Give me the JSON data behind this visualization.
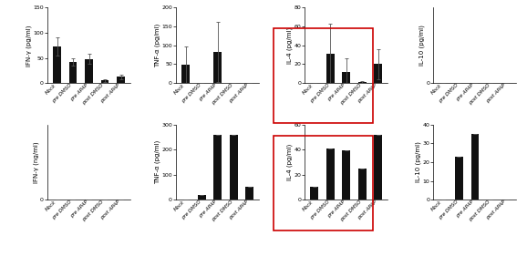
{
  "categories": [
    "Mock",
    "pre DMSO",
    "pre APAP",
    "post DMSO",
    "post APAP"
  ],
  "row1": {
    "IFN_gamma": {
      "ylabel": "IFN-γ (pg/ml)",
      "ylim": [
        0,
        150
      ],
      "yticks": [
        0,
        50,
        100,
        150
      ],
      "values": [
        73,
        42,
        48,
        5,
        12
      ],
      "errors": [
        18,
        8,
        10,
        3,
        5
      ],
      "boxed": false
    },
    "TNF_alpha": {
      "ylabel": "TNF-α (pg/ml)",
      "ylim": [
        0,
        200
      ],
      "yticks": [
        0,
        50,
        100,
        150,
        200
      ],
      "values": [
        48,
        0,
        82,
        0,
        0
      ],
      "errors": [
        50,
        0,
        80,
        0,
        0
      ],
      "boxed": false
    },
    "IL_4": {
      "ylabel": "IL-4 (pg/ml)",
      "ylim": [
        0,
        80
      ],
      "yticks": [
        0,
        20,
        40,
        60,
        80
      ],
      "values": [
        0,
        31,
        12,
        1,
        20
      ],
      "errors": [
        0,
        32,
        14,
        1,
        16
      ],
      "boxed": true
    },
    "IL_10": {
      "ylabel": "IL-10 (pg/ml)",
      "ylim": [
        0,
        4
      ],
      "yticks": [
        0
      ],
      "values": [
        0,
        0,
        0,
        0,
        0
      ],
      "errors": [
        0,
        0,
        0,
        0,
        0
      ],
      "boxed": false
    }
  },
  "row2": {
    "IFN_gamma": {
      "ylabel": "IFN-γ (ng/ml)",
      "ylim": [
        0,
        4
      ],
      "yticks": [
        0
      ],
      "values": [
        0,
        0,
        0,
        0,
        0
      ],
      "errors": [
        0,
        0,
        0,
        0,
        0
      ],
      "boxed": false
    },
    "TNF_alpha": {
      "ylabel": "TNF-α (pg/ml)",
      "ylim": [
        0,
        300
      ],
      "yticks": [
        0,
        100,
        200,
        300
      ],
      "values": [
        0,
        20,
        260,
        260,
        50
      ],
      "errors": [
        0,
        0,
        0,
        0,
        0
      ],
      "boxed": false
    },
    "IL_4": {
      "ylabel": "IL-4 (pg/ml)",
      "ylim": [
        0,
        60
      ],
      "yticks": [
        0,
        20,
        40,
        60
      ],
      "values": [
        10,
        41,
        39,
        25,
        52
      ],
      "errors": [
        0,
        0,
        0,
        0,
        0
      ],
      "boxed": true
    },
    "IL_10": {
      "ylabel": "IL-10 (pg/ml)",
      "ylim": [
        0,
        40
      ],
      "yticks": [
        0,
        10,
        20,
        30,
        40
      ],
      "values": [
        0,
        23,
        35,
        0,
        0
      ],
      "errors": [
        0,
        0,
        0,
        0,
        0
      ],
      "boxed": false
    }
  },
  "bar_color": "#111111",
  "bar_width": 0.5,
  "box_color": "#cc0000",
  "background_color": "#ffffff",
  "fontsize_ylabel": 5,
  "fontsize_ytick": 4.5,
  "fontsize_xtick": 4.0
}
